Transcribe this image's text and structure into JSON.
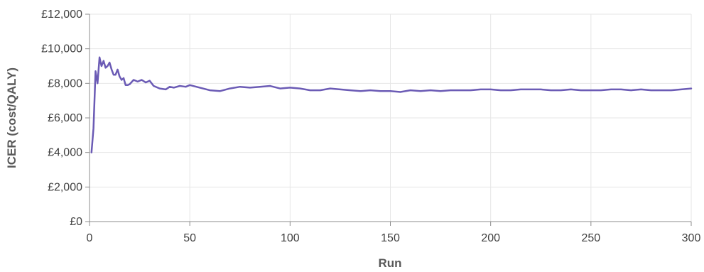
{
  "chart_data": {
    "type": "line",
    "xlabel": "Run",
    "ylabel": "ICER (cost/QALY)",
    "xlim": [
      0,
      300
    ],
    "ylim": [
      0,
      12000
    ],
    "x_ticks": [
      0,
      50,
      100,
      150,
      200,
      250,
      300
    ],
    "y_ticks": [
      0,
      2000,
      4000,
      6000,
      8000,
      10000,
      12000
    ],
    "y_tick_labels": [
      "£0",
      "£2,000",
      "£4,000",
      "£6,000",
      "£8,000",
      "£10,000",
      "£12,000"
    ],
    "x_tick_labels": [
      "0",
      "50",
      "100",
      "150",
      "200",
      "250",
      "300"
    ],
    "grid": true,
    "line_color": "#6b5bb5",
    "series": [
      {
        "x": [
          1,
          2,
          3,
          4,
          5,
          6,
          7,
          8,
          9,
          10,
          11,
          12,
          13,
          14,
          15,
          16,
          17,
          18,
          19,
          20,
          22,
          24,
          26,
          28,
          30,
          32,
          35,
          38,
          40,
          42,
          45,
          48,
          50,
          55,
          60,
          65,
          70,
          75,
          80,
          85,
          90,
          95,
          100,
          105,
          110,
          115,
          120,
          125,
          130,
          135,
          140,
          145,
          150,
          155,
          160,
          165,
          170,
          175,
          180,
          185,
          190,
          195,
          200,
          205,
          210,
          215,
          220,
          225,
          230,
          235,
          240,
          245,
          250,
          255,
          260,
          265,
          270,
          275,
          280,
          285,
          290,
          295,
          300
        ],
        "y": [
          4000,
          5400,
          8700,
          8000,
          9500,
          9000,
          9300,
          8900,
          9000,
          9200,
          8800,
          8500,
          8500,
          8800,
          8400,
          8200,
          8300,
          7900,
          7900,
          7950,
          8200,
          8100,
          8200,
          8050,
          8150,
          7850,
          7700,
          7650,
          7800,
          7750,
          7850,
          7800,
          7900,
          7750,
          7600,
          7550,
          7700,
          7800,
          7750,
          7800,
          7850,
          7700,
          7750,
          7700,
          7600,
          7600,
          7700,
          7650,
          7600,
          7550,
          7600,
          7550,
          7550,
          7500,
          7600,
          7550,
          7600,
          7550,
          7600,
          7600,
          7600,
          7650,
          7650,
          7600,
          7600,
          7650,
          7650,
          7650,
          7600,
          7600,
          7650,
          7600,
          7600,
          7600,
          7650,
          7650,
          7600,
          7650,
          7600,
          7600,
          7600,
          7650,
          7700
        ]
      }
    ]
  }
}
